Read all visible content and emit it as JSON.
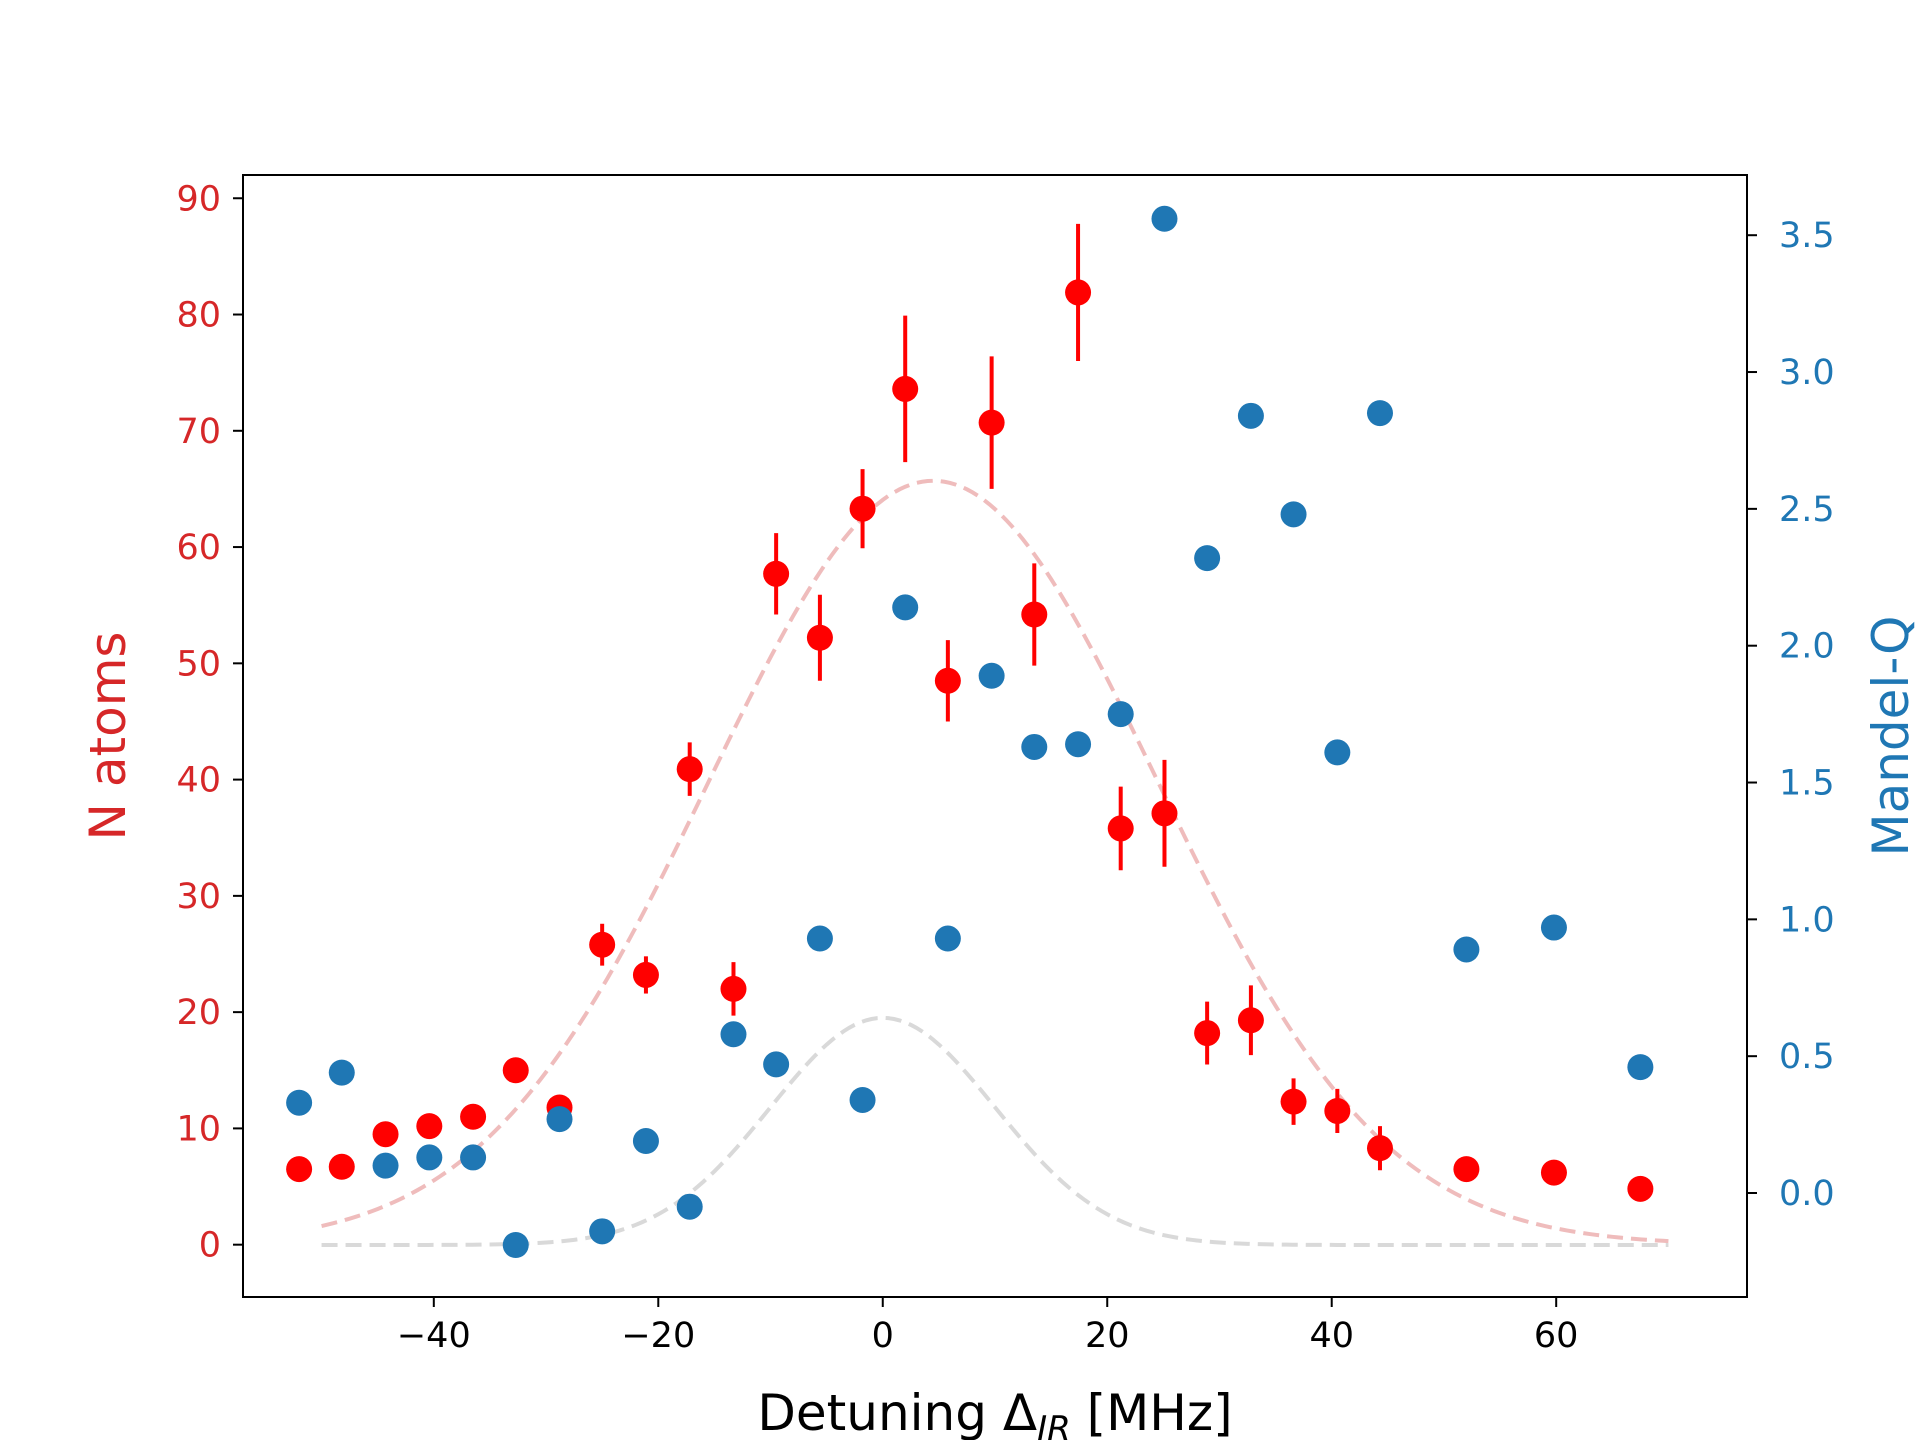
{
  "chart_data": {
    "type": "scatter",
    "xlabel_main": "Detuning Δ",
    "xlabel_sub": "IR",
    "xlabel_unit": " [MHz]",
    "ylabel_left": "N atoms",
    "ylabel_right": "Mandel-Q",
    "xlim": [
      -57,
      77
    ],
    "ylim_left": [
      -4.5,
      92
    ],
    "ylim_right": [
      -0.38,
      3.72
    ],
    "x_ticks": [
      -40,
      -20,
      0,
      20,
      40,
      60
    ],
    "y_left_ticks": [
      0,
      10,
      20,
      30,
      40,
      50,
      60,
      70,
      80,
      90
    ],
    "y_right_ticks": [
      0.0,
      0.5,
      1.0,
      1.5,
      2.0,
      2.5,
      3.0,
      3.5
    ],
    "colors": {
      "left_axis": "#d62728",
      "right_axis": "#1f77b4",
      "atoms_points": "#ff0000",
      "mandel_points": "#1f77b4",
      "atoms_fit": "#efbcbc",
      "mandel_fit": "#d9d9d9"
    },
    "series": [
      {
        "axis": "left",
        "kind": "points_with_errorbars",
        "x": [
          -52,
          -48.2,
          -44.3,
          -40.4,
          -36.5,
          -32.7,
          -28.8,
          -25.0,
          -21.1,
          -17.2,
          -13.3,
          -9.5,
          -5.6,
          -1.8,
          2.0,
          5.8,
          9.7,
          13.5,
          17.4,
          21.2,
          25.1,
          28.9,
          32.8,
          36.6,
          40.5,
          44.3,
          52.0,
          59.8,
          67.5
        ],
        "y": [
          6.5,
          6.7,
          9.5,
          10.2,
          11.0,
          15.0,
          11.8,
          25.8,
          23.2,
          40.9,
          22.0,
          57.7,
          52.2,
          63.3,
          73.6,
          48.5,
          70.7,
          54.2,
          81.9,
          35.8,
          37.1,
          18.2,
          19.3,
          12.3,
          11.5,
          8.3,
          6.5,
          6.2,
          4.8
        ],
        "yerr": [
          0.5,
          0.5,
          0.6,
          0.7,
          0.8,
          0.9,
          0.9,
          1.8,
          1.6,
          2.3,
          2.3,
          3.5,
          3.7,
          3.4,
          6.3,
          3.5,
          5.7,
          4.4,
          5.9,
          3.6,
          4.6,
          2.7,
          3.0,
          2.0,
          1.9,
          1.9,
          0.6,
          0.6,
          0.5
        ]
      },
      {
        "axis": "right",
        "kind": "points",
        "x": [
          -52,
          -48.2,
          -44.3,
          -40.4,
          -36.5,
          -32.7,
          -28.8,
          -25.0,
          -21.1,
          -17.2,
          -13.3,
          -9.5,
          -5.6,
          -1.8,
          2.0,
          5.8,
          9.7,
          13.5,
          17.4,
          21.2,
          25.1,
          28.9,
          32.8,
          36.6,
          40.5,
          44.3,
          52.0,
          59.8,
          67.5
        ],
        "y": [
          0.33,
          0.44,
          0.1,
          0.13,
          0.13,
          -0.19,
          0.27,
          -0.14,
          0.19,
          -0.05,
          0.58,
          0.47,
          0.93,
          0.34,
          2.14,
          0.93,
          1.89,
          1.63,
          1.64,
          1.75,
          3.56,
          2.32,
          2.84,
          2.48,
          1.61,
          2.85,
          0.89,
          0.97,
          0.46
        ]
      },
      {
        "axis": "left",
        "kind": "dashed_curve",
        "function": "gaussian",
        "amplitude": 65.7,
        "center": 4.5,
        "sigma": 20,
        "offset": 0,
        "x_range": [
          -50,
          70
        ]
      },
      {
        "axis": "right",
        "kind": "dashed_curve",
        "function": "gaussian",
        "amplitude": 0.83,
        "center": 0,
        "sigma": 10,
        "offset": -0.19,
        "x_range": [
          -50,
          70
        ]
      }
    ]
  }
}
